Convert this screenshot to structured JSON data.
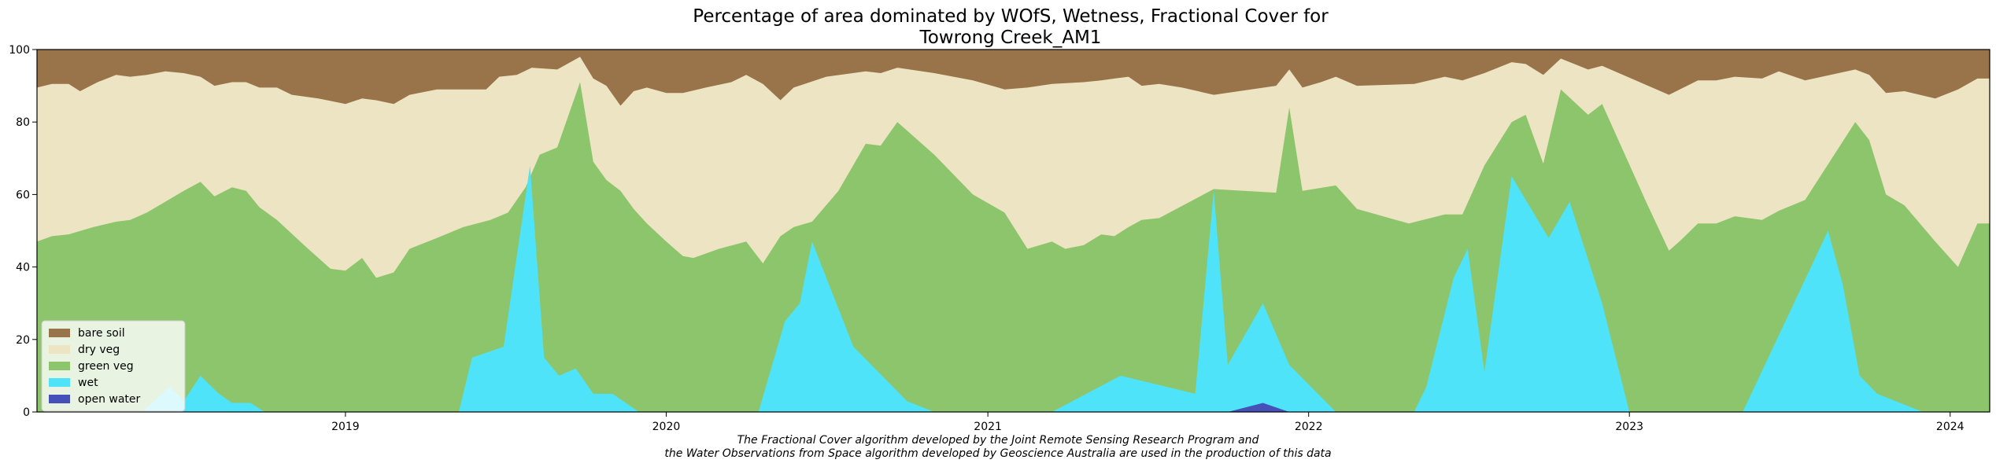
{
  "chart_data": {
    "type": "area",
    "title_line1": "Percentage of area dominated by WOfS, Wetness, Fractional Cover for",
    "title_line2": "Towrong Creek_AM1",
    "xlabel": "",
    "ylabel": "",
    "xlim": [
      "2018-01-15",
      "2024-02-15"
    ],
    "ylim": [
      0,
      100
    ],
    "yticks": [
      0,
      20,
      40,
      60,
      80,
      100
    ],
    "xticks": [
      "2019-01-01",
      "2020-01-01",
      "2021-01-01",
      "2022-01-01",
      "2023-01-01",
      "2024-01-01"
    ],
    "xtick_labels": [
      "2019",
      "2020",
      "2021",
      "2022",
      "2023",
      "2024"
    ],
    "stacked": true,
    "grid": false,
    "legend_position": "lower-left",
    "series": [
      {
        "name": "open water",
        "color": "#4550B8",
        "points": [
          [
            "2018-01-15",
            0
          ],
          [
            "2021-10-01",
            0
          ],
          [
            "2021-11-10",
            2.5
          ],
          [
            "2021-12-10",
            0
          ],
          [
            "2024-02-15",
            0
          ]
        ]
      },
      {
        "name": "wet",
        "color": "#4FE3FA",
        "points": [
          [
            "2018-01-15",
            0
          ],
          [
            "2018-05-15",
            0
          ],
          [
            "2018-06-15",
            7
          ],
          [
            "2018-07-01",
            3
          ],
          [
            "2018-07-20",
            10
          ],
          [
            "2018-08-10",
            5
          ],
          [
            "2018-08-25",
            2.5
          ],
          [
            "2018-09-15",
            2.5
          ],
          [
            "2018-10-01",
            0
          ],
          [
            "2019-05-10",
            0
          ],
          [
            "2019-05-25",
            15
          ],
          [
            "2019-06-30",
            18
          ],
          [
            "2019-07-30",
            68
          ],
          [
            "2019-08-15",
            15
          ],
          [
            "2019-09-01",
            10
          ],
          [
            "2019-09-20",
            12
          ],
          [
            "2019-10-10",
            5
          ],
          [
            "2019-11-01",
            5
          ],
          [
            "2019-12-01",
            0
          ],
          [
            "2020-04-15",
            0
          ],
          [
            "2020-05-15",
            25
          ],
          [
            "2020-06-01",
            30
          ],
          [
            "2020-06-15",
            47
          ],
          [
            "2020-08-01",
            18
          ],
          [
            "2020-10-01",
            3
          ],
          [
            "2020-11-01",
            0
          ],
          [
            "2021-03-15",
            0
          ],
          [
            "2021-06-01",
            10
          ],
          [
            "2021-08-25",
            5
          ],
          [
            "2021-09-15",
            61
          ],
          [
            "2021-10-01",
            13
          ],
          [
            "2021-11-10",
            30
          ],
          [
            "2021-12-10",
            13
          ],
          [
            "2022-02-01",
            0
          ],
          [
            "2022-05-01",
            0
          ],
          [
            "2022-05-15",
            7
          ],
          [
            "2022-06-15",
            37
          ],
          [
            "2022-07-01",
            45
          ],
          [
            "2022-07-20",
            11
          ],
          [
            "2022-08-20",
            65
          ],
          [
            "2022-10-01",
            48
          ],
          [
            "2022-10-25",
            58
          ],
          [
            "2022-12-01",
            30
          ],
          [
            "2023-01-01",
            0
          ],
          [
            "2023-05-10",
            0
          ],
          [
            "2023-08-15",
            50
          ],
          [
            "2023-09-01",
            35
          ],
          [
            "2023-09-20",
            10
          ],
          [
            "2023-10-10",
            5
          ],
          [
            "2023-12-01",
            0
          ],
          [
            "2024-02-15",
            0
          ]
        ]
      },
      {
        "name": "green veg",
        "color": "#8CC56B",
        "points": [
          [
            "2018-01-15",
            47
          ],
          [
            "2018-02-01",
            48.5
          ],
          [
            "2018-02-20",
            49
          ],
          [
            "2018-03-20",
            51
          ],
          [
            "2018-04-15",
            52.5
          ],
          [
            "2018-05-01",
            53
          ],
          [
            "2018-05-20",
            55
          ],
          [
            "2018-06-10",
            58
          ],
          [
            "2018-07-01",
            61
          ],
          [
            "2018-07-20",
            63.5
          ],
          [
            "2018-08-05",
            59.5
          ],
          [
            "2018-08-25",
            62
          ],
          [
            "2018-09-10",
            61
          ],
          [
            "2018-09-25",
            56.5
          ],
          [
            "2018-10-15",
            53
          ],
          [
            "2018-11-15",
            46
          ],
          [
            "2018-12-15",
            39.5
          ],
          [
            "2019-01-01",
            39
          ],
          [
            "2019-01-20",
            42.5
          ],
          [
            "2019-02-05",
            37
          ],
          [
            "2019-02-25",
            38.5
          ],
          [
            "2019-03-15",
            45
          ],
          [
            "2019-04-15",
            48
          ],
          [
            "2019-05-15",
            51
          ],
          [
            "2019-06-15",
            53
          ],
          [
            "2019-07-05",
            55
          ],
          [
            "2019-07-25",
            62
          ],
          [
            "2019-08-10",
            71
          ],
          [
            "2019-08-30",
            73
          ],
          [
            "2019-09-25",
            91
          ],
          [
            "2019-10-10",
            69
          ],
          [
            "2019-10-25",
            64
          ],
          [
            "2019-11-10",
            61
          ],
          [
            "2019-11-25",
            56
          ],
          [
            "2019-12-10",
            52
          ],
          [
            "2020-01-01",
            47
          ],
          [
            "2020-01-20",
            43
          ],
          [
            "2020-02-01",
            42.5
          ],
          [
            "2020-03-01",
            45
          ],
          [
            "2020-04-01",
            47
          ],
          [
            "2020-04-20",
            41
          ],
          [
            "2020-05-10",
            48.5
          ],
          [
            "2020-05-25",
            51
          ],
          [
            "2020-06-15",
            52.5
          ],
          [
            "2020-07-15",
            61
          ],
          [
            "2020-08-15",
            74
          ],
          [
            "2020-09-01",
            73.5
          ],
          [
            "2020-09-20",
            80
          ],
          [
            "2020-11-01",
            71
          ],
          [
            "2020-12-15",
            60
          ],
          [
            "2021-01-20",
            55
          ],
          [
            "2021-02-15",
            45
          ],
          [
            "2021-03-15",
            47
          ],
          [
            "2021-03-30",
            45
          ],
          [
            "2021-04-20",
            46
          ],
          [
            "2021-05-10",
            49
          ],
          [
            "2021-05-25",
            48.5
          ],
          [
            "2021-06-10",
            51
          ],
          [
            "2021-06-25",
            53
          ],
          [
            "2021-07-15",
            53.5
          ],
          [
            "2021-09-15",
            61.5
          ],
          [
            "2021-11-25",
            60.5
          ],
          [
            "2021-12-10",
            84
          ],
          [
            "2021-12-25",
            61
          ],
          [
            "2022-02-01",
            62.5
          ],
          [
            "2022-02-25",
            56
          ],
          [
            "2022-04-25",
            52
          ],
          [
            "2022-06-05",
            54.5
          ],
          [
            "2022-06-25",
            54.5
          ],
          [
            "2022-07-20",
            68
          ],
          [
            "2022-08-20",
            80
          ],
          [
            "2022-09-05",
            82
          ],
          [
            "2022-09-25",
            68.5
          ],
          [
            "2022-10-15",
            89
          ],
          [
            "2022-11-15",
            82
          ],
          [
            "2022-12-01",
            85
          ],
          [
            "2023-01-20",
            58
          ],
          [
            "2023-02-15",
            44.5
          ],
          [
            "2023-03-01",
            47.5
          ],
          [
            "2023-03-20",
            52
          ],
          [
            "2023-04-10",
            52
          ],
          [
            "2023-05-01",
            54
          ],
          [
            "2023-06-01",
            53
          ],
          [
            "2023-06-20",
            55.5
          ],
          [
            "2023-07-20",
            58.5
          ],
          [
            "2023-09-15",
            80
          ],
          [
            "2023-10-01",
            75
          ],
          [
            "2023-10-20",
            60
          ],
          [
            "2023-11-10",
            57
          ],
          [
            "2023-12-15",
            47
          ],
          [
            "2024-01-10",
            40
          ],
          [
            "2024-02-01",
            52
          ],
          [
            "2024-02-15",
            52
          ]
        ]
      },
      {
        "name": "dry veg",
        "color": "#ECE4C3",
        "points": [
          [
            "2018-01-15",
            89.5
          ],
          [
            "2018-02-01",
            90.5
          ],
          [
            "2018-02-20",
            90.5
          ],
          [
            "2018-03-05",
            88.5
          ],
          [
            "2018-03-25",
            91
          ],
          [
            "2018-04-15",
            93
          ],
          [
            "2018-05-01",
            92.5
          ],
          [
            "2018-05-20",
            93
          ],
          [
            "2018-06-10",
            94
          ],
          [
            "2018-07-01",
            93.5
          ],
          [
            "2018-07-20",
            92.5
          ],
          [
            "2018-08-05",
            90
          ],
          [
            "2018-08-25",
            91
          ],
          [
            "2018-09-10",
            91
          ],
          [
            "2018-09-25",
            89.5
          ],
          [
            "2018-10-15",
            89.5
          ],
          [
            "2018-11-01",
            87.5
          ],
          [
            "2018-12-01",
            86.5
          ],
          [
            "2019-01-01",
            85
          ],
          [
            "2019-01-20",
            86.5
          ],
          [
            "2019-02-05",
            86
          ],
          [
            "2019-02-25",
            85
          ],
          [
            "2019-03-15",
            87.5
          ],
          [
            "2019-04-15",
            89
          ],
          [
            "2019-05-15",
            89
          ],
          [
            "2019-06-10",
            89
          ],
          [
            "2019-06-25",
            92.5
          ],
          [
            "2019-07-15",
            93
          ],
          [
            "2019-08-01",
            95
          ],
          [
            "2019-08-30",
            94.5
          ],
          [
            "2019-09-25",
            98
          ],
          [
            "2019-10-10",
            92
          ],
          [
            "2019-10-25",
            90
          ],
          [
            "2019-11-10",
            84.5
          ],
          [
            "2019-11-25",
            88.5
          ],
          [
            "2019-12-10",
            89.5
          ],
          [
            "2020-01-01",
            88
          ],
          [
            "2020-01-20",
            88
          ],
          [
            "2020-02-15",
            89.5
          ],
          [
            "2020-03-15",
            91
          ],
          [
            "2020-04-01",
            93
          ],
          [
            "2020-04-20",
            90.5
          ],
          [
            "2020-05-10",
            86
          ],
          [
            "2020-05-25",
            89.5
          ],
          [
            "2020-07-01",
            92.5
          ],
          [
            "2020-08-15",
            94
          ],
          [
            "2020-09-01",
            93.5
          ],
          [
            "2020-09-20",
            95
          ],
          [
            "2020-11-01",
            93.5
          ],
          [
            "2020-12-15",
            91.5
          ],
          [
            "2021-01-20",
            89
          ],
          [
            "2021-02-15",
            89.5
          ],
          [
            "2021-03-15",
            90.5
          ],
          [
            "2021-04-20",
            91
          ],
          [
            "2021-05-10",
            91.5
          ],
          [
            "2021-05-25",
            92
          ],
          [
            "2021-06-10",
            92.5
          ],
          [
            "2021-06-25",
            90
          ],
          [
            "2021-07-15",
            90.5
          ],
          [
            "2021-08-10",
            89.5
          ],
          [
            "2021-09-15",
            87.5
          ],
          [
            "2021-11-25",
            90
          ],
          [
            "2021-12-10",
            94.5
          ],
          [
            "2021-12-25",
            89.5
          ],
          [
            "2022-01-15",
            91
          ],
          [
            "2022-02-01",
            92.5
          ],
          [
            "2022-02-25",
            90
          ],
          [
            "2022-05-01",
            90.5
          ],
          [
            "2022-06-05",
            92.5
          ],
          [
            "2022-06-25",
            91.5
          ],
          [
            "2022-07-20",
            93.5
          ],
          [
            "2022-08-20",
            96.5
          ],
          [
            "2022-09-05",
            96
          ],
          [
            "2022-09-25",
            93
          ],
          [
            "2022-10-15",
            97.5
          ],
          [
            "2022-11-15",
            94.5
          ],
          [
            "2022-12-01",
            95.5
          ],
          [
            "2023-02-15",
            87.5
          ],
          [
            "2023-03-20",
            91.5
          ],
          [
            "2023-04-10",
            91.5
          ],
          [
            "2023-05-01",
            92.5
          ],
          [
            "2023-06-01",
            92
          ],
          [
            "2023-06-20",
            94
          ],
          [
            "2023-07-20",
            91.5
          ],
          [
            "2023-09-15",
            94.5
          ],
          [
            "2023-10-01",
            93
          ],
          [
            "2023-10-20",
            88
          ],
          [
            "2023-11-10",
            88.5
          ],
          [
            "2023-12-15",
            86.5
          ],
          [
            "2024-01-10",
            89
          ],
          [
            "2024-02-01",
            92
          ],
          [
            "2024-02-15",
            92
          ]
        ]
      },
      {
        "name": "bare soil",
        "color": "#99734A",
        "points": [
          [
            "2018-01-15",
            100
          ],
          [
            "2024-02-15",
            100
          ]
        ]
      }
    ],
    "legend_order": [
      "bare soil",
      "dry veg",
      "green veg",
      "wet",
      "open water"
    ]
  },
  "caption": {
    "line1": "The Fractional Cover algorithm developed by the Joint Remote Sensing Research Program and",
    "line2": "the Water Observations from Space algorithm developed by Geoscience Australia are used in the production of this data"
  }
}
